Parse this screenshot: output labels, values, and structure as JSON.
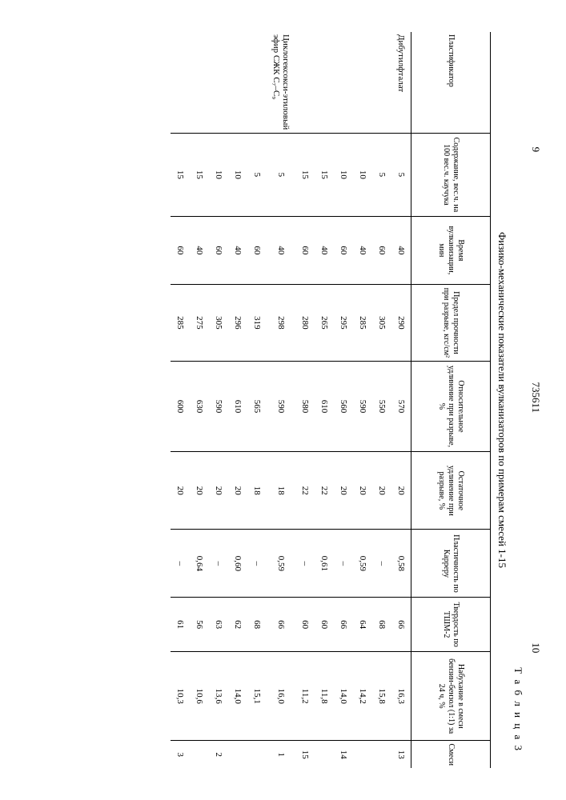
{
  "header": {
    "left_page": "9",
    "doc_num": "735611",
    "right_page": "10",
    "table_label": "Т а б л и ц а   3",
    "caption": "Физико-механические показатели вулканизаторов по примерам смесей 1-15"
  },
  "columns": [
    "Пластификатор",
    "Содержание, вес.ч. на 100 вес.ч. каучука",
    "Время вулканизации, мин",
    "Предел прочности при разрыве, кгс/см²",
    "Относительное удлинение при разрыве, %",
    "Остаточное удлинение при разрыве, %",
    "Пластичность по Карреру",
    "Твердость по ТШМ-2",
    "Набухание в смеси бензин-бензол (1:1) за 24 ч, %",
    "Смеси"
  ],
  "rows": [
    {
      "p": "Дибутилфталат",
      "c": [
        "5",
        "40",
        "290",
        "570",
        "20",
        "0,58",
        "66",
        "16,3",
        "13"
      ]
    },
    {
      "p": "",
      "c": [
        "5",
        "60",
        "305",
        "550",
        "20",
        "–",
        "68",
        "15,8",
        ""
      ]
    },
    {
      "p": "",
      "c": [
        "10",
        "40",
        "285",
        "590",
        "20",
        "0,59",
        "64",
        "14,2",
        ""
      ]
    },
    {
      "p": "",
      "c": [
        "10",
        "60",
        "295",
        "560",
        "20",
        "–",
        "66",
        "14,0",
        "14"
      ]
    },
    {
      "p": "",
      "c": [
        "15",
        "40",
        "265",
        "610",
        "22",
        "0,61",
        "60",
        "11,8",
        ""
      ]
    },
    {
      "p": "",
      "c": [
        "15",
        "60",
        "280",
        "580",
        "22",
        "–",
        "60",
        "11,2",
        "15"
      ]
    },
    {
      "p": "Циклогексокси-этиловый эфир СЖК С₇–С₉",
      "c": [
        "5",
        "40",
        "298",
        "590",
        "18",
        "0,59",
        "66",
        "16,0",
        "1"
      ]
    },
    {
      "p": "",
      "c": [
        "5",
        "60",
        "319",
        "565",
        "18",
        "–",
        "68",
        "15,1",
        ""
      ]
    },
    {
      "p": "",
      "c": [
        "10",
        "40",
        "296",
        "610",
        "20",
        "0,60",
        "62",
        "14,0",
        ""
      ]
    },
    {
      "p": "",
      "c": [
        "10",
        "60",
        "305",
        "590",
        "20",
        "–",
        "63",
        "13,6",
        "2"
      ]
    },
    {
      "p": "",
      "c": [
        "15",
        "40",
        "275",
        "630",
        "20",
        "0,64",
        "56",
        "10,6",
        ""
      ]
    },
    {
      "p": "",
      "c": [
        "15",
        "60",
        "285",
        "600",
        "20",
        "–",
        "61",
        "10,3",
        "3"
      ]
    }
  ]
}
